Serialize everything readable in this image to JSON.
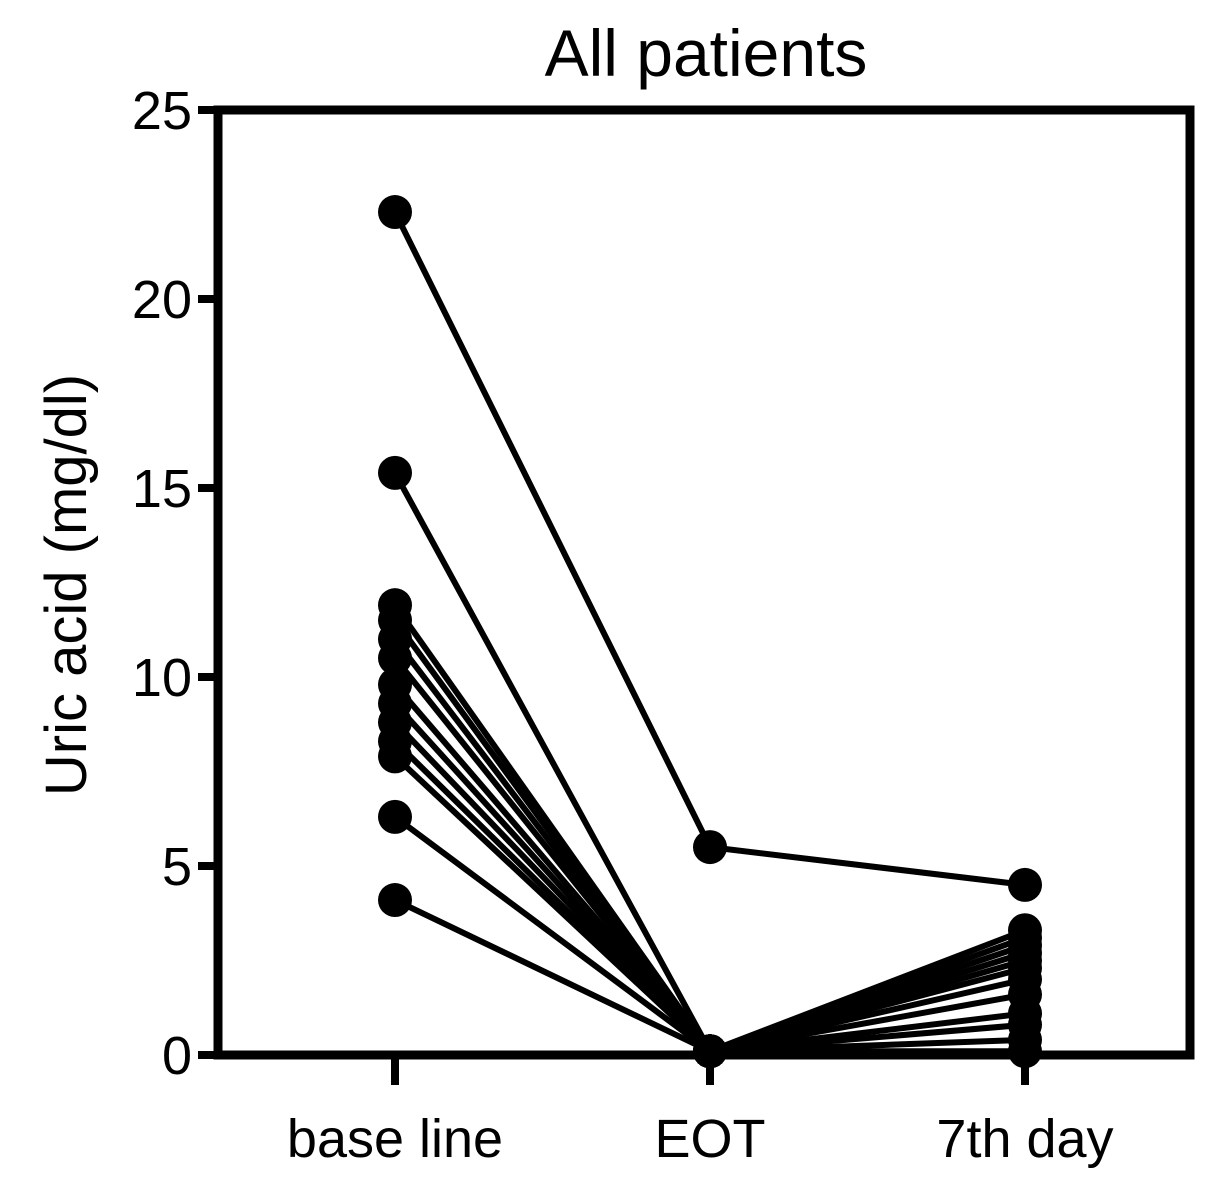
{
  "chart_data": {
    "type": "line",
    "title": "All patients",
    "xlabel": "",
    "ylabel": "Uric acid (mg/dl)",
    "categories": [
      "base line",
      "EOT",
      "7th day"
    ],
    "ylim": [
      0,
      25
    ],
    "yticks": [
      0,
      5,
      10,
      15,
      20,
      25
    ],
    "grid": false,
    "legend": "none",
    "line_color": "#000000",
    "series": [
      {
        "values": [
          22.3,
          5.5,
          4.5
        ]
      },
      {
        "values": [
          15.4,
          0.1,
          3.3
        ]
      },
      {
        "values": [
          11.9,
          0.1,
          3.1
        ]
      },
      {
        "values": [
          11.5,
          0.1,
          2.9
        ]
      },
      {
        "values": [
          11.0,
          0.1,
          2.7
        ]
      },
      {
        "values": [
          10.5,
          0.1,
          2.5
        ]
      },
      {
        "values": [
          9.8,
          0.1,
          2.3
        ]
      },
      {
        "values": [
          9.3,
          0.1,
          2.0
        ]
      },
      {
        "values": [
          8.8,
          0.1,
          1.6
        ]
      },
      {
        "values": [
          8.3,
          0.1,
          1.1
        ]
      },
      {
        "values": [
          7.9,
          0.1,
          0.8
        ]
      },
      {
        "values": [
          6.3,
          0.1,
          0.4
        ]
      },
      {
        "values": [
          4.1,
          0.1,
          0.1
        ]
      }
    ]
  }
}
